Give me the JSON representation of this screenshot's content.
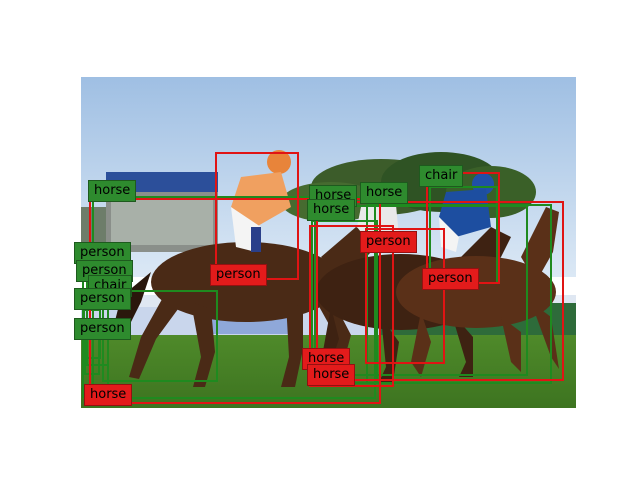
{
  "colors": {
    "green": "#1f8a1f",
    "red": "#e01414",
    "green_label": "#2e8b2e",
    "red_label": "#e31b1b"
  },
  "detections": [
    {
      "label": "horse",
      "color": "green"
    },
    {
      "label": "person",
      "color": "green"
    },
    {
      "label": "person",
      "color": "green"
    },
    {
      "label": "chair",
      "color": "green"
    },
    {
      "label": "person",
      "color": "green"
    },
    {
      "label": "person",
      "color": "green"
    },
    {
      "label": "horse",
      "color": "green"
    },
    {
      "label": "horse",
      "color": "green"
    },
    {
      "label": "horse",
      "color": "green"
    },
    {
      "label": "chair",
      "color": "green"
    },
    {
      "label": "person",
      "color": "red"
    },
    {
      "label": "person",
      "color": "red"
    },
    {
      "label": "person",
      "color": "red"
    },
    {
      "label": "horse",
      "color": "red"
    },
    {
      "label": "horse",
      "color": "red"
    },
    {
      "label": "horse",
      "color": "red"
    }
  ]
}
